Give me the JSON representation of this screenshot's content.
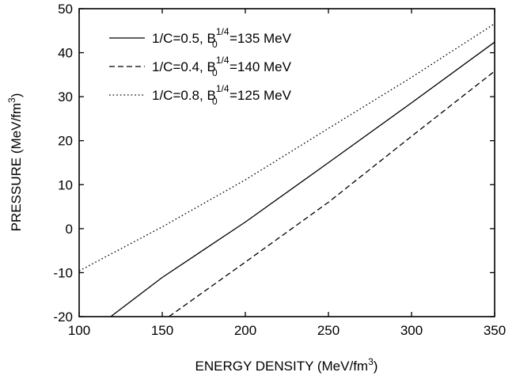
{
  "chart_data": {
    "type": "line",
    "xlabel": "ENERGY DENSITY (MeV/fm",
    "xlabel_sup": "3",
    "xlabel_tail": ")",
    "ylabel": "PRESSURE (MeV/fm",
    "ylabel_sup": "3",
    "ylabel_tail": ")",
    "xlim": [
      100,
      350
    ],
    "ylim": [
      -20,
      50
    ],
    "x_ticks": [
      100,
      150,
      200,
      250,
      300,
      350
    ],
    "y_ticks": [
      -20,
      -10,
      0,
      10,
      20,
      30,
      40,
      50
    ],
    "grid": false,
    "legend_position": "top-left",
    "series": [
      {
        "name": "1/C=0.5, B0^1/4=135 MeV",
        "legend_prefix": "1/C=0.5, B",
        "legend_sub": "0",
        "legend_sup": "1/4",
        "legend_suffix": "=135 MeV",
        "dash": "solid",
        "x": [
          119,
          150,
          200,
          250,
          300,
          350
        ],
        "y": [
          -20,
          -11.1,
          1.5,
          15.0,
          28.6,
          42.4
        ]
      },
      {
        "name": "1/C=0.4, B0^1/4=140 MeV",
        "legend_prefix": "1/C=0.4, B",
        "legend_sub": "0",
        "legend_sup": "1/4",
        "legend_suffix": "=140 MeV",
        "dash": "dashed",
        "x": [
          154,
          200,
          250,
          300,
          350
        ],
        "y": [
          -20,
          -7.6,
          6.0,
          21.0,
          35.8
        ]
      },
      {
        "name": "1/C=0.8, B0^1/4=125 MeV",
        "legend_prefix": "1/C=0.8, B",
        "legend_sub": "0",
        "legend_sup": "1/4",
        "legend_suffix": "=125 MeV",
        "dash": "dotted",
        "x": [
          100,
          150,
          200,
          250,
          300,
          350
        ],
        "y": [
          -9.6,
          0.4,
          11.1,
          22.8,
          34.4,
          46.6
        ]
      }
    ]
  }
}
